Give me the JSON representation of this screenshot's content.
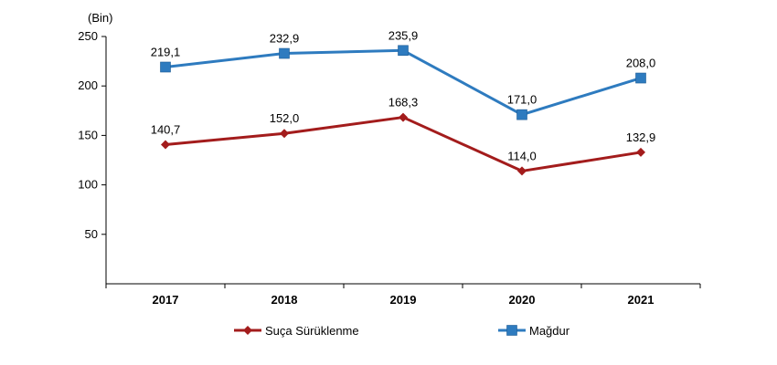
{
  "chart_data": {
    "type": "line",
    "title": "",
    "unit_label": "(Bin)",
    "xlabel": "",
    "ylabel": "",
    "categories": [
      "2017",
      "2018",
      "2019",
      "2020",
      "2021"
    ],
    "ylim": [
      0,
      250
    ],
    "yticks": [
      50,
      100,
      150,
      200,
      250
    ],
    "grid": false,
    "legend_position": "bottom",
    "series": [
      {
        "name": "Suça Sürüklenme",
        "values": [
          140.7,
          152.0,
          168.3,
          114.0,
          132.9
        ],
        "labels": [
          "140,7",
          "152,0",
          "168,3",
          "114,0",
          "132,9"
        ],
        "color": "#a31c1c",
        "marker": "diamond"
      },
      {
        "name": "Mağdur",
        "values": [
          219.1,
          232.9,
          235.9,
          171.0,
          208.0
        ],
        "labels": [
          "219,1",
          "232,9",
          "235,9",
          "171,0",
          "208,0"
        ],
        "color": "#2e7bbf",
        "marker": "square"
      }
    ]
  }
}
